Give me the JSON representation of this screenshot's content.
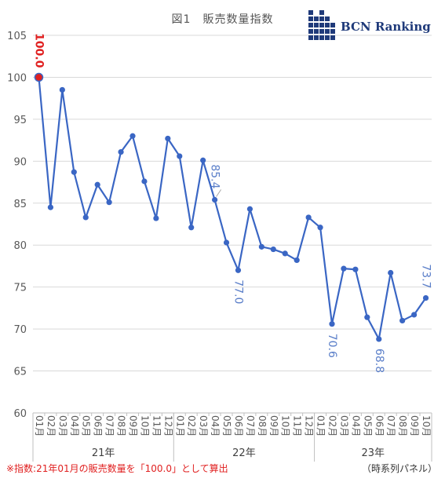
{
  "title": "図1　販売数量指数",
  "logo": {
    "text": "BCN Ranking"
  },
  "note": "※指数:21年01月の販売数量を「100.0」として算出",
  "source": "（時系列パネル）",
  "colors": {
    "line": "#3a66c4",
    "marker": "#3a66c4",
    "highlight": "#e02020",
    "label": "#5b7fc9",
    "grid": "#d9d9d9"
  },
  "chart_data": {
    "type": "line",
    "title": "図1　販売数量指数",
    "ylim": [
      60,
      105
    ],
    "yticks": [
      60,
      65,
      70,
      75,
      80,
      85,
      90,
      95,
      100,
      105
    ],
    "grid": true,
    "month_labels": [
      "01月",
      "02月",
      "03月",
      "04月",
      "05月",
      "06月",
      "07月",
      "08月",
      "09月",
      "10月",
      "11月",
      "12月",
      "01月",
      "02月",
      "03月",
      "04月",
      "05月",
      "06月",
      "07月",
      "08月",
      "09月",
      "10月",
      "11月",
      "12月",
      "01月",
      "02月",
      "03月",
      "04月",
      "05月",
      "06月",
      "07月",
      "08月",
      "09月",
      "10月"
    ],
    "year_groups": [
      {
        "label": "21年",
        "start": 0,
        "end": 11
      },
      {
        "label": "22年",
        "start": 12,
        "end": 23
      },
      {
        "label": "23年",
        "start": 24,
        "end": 33
      }
    ],
    "values": [
      100.0,
      84.5,
      98.5,
      88.7,
      83.3,
      87.2,
      85.1,
      91.1,
      93.0,
      87.6,
      83.2,
      92.7,
      90.6,
      82.1,
      90.1,
      85.4,
      80.3,
      77.0,
      84.3,
      79.8,
      79.5,
      79.0,
      78.2,
      83.3,
      82.1,
      70.6,
      77.2,
      77.1,
      71.4,
      68.8,
      76.7,
      71.0,
      71.7,
      73.7
    ],
    "data_labels": [
      {
        "index": 0,
        "text": "100.0"
      },
      {
        "index": 15,
        "text": "85.4"
      },
      {
        "index": 17,
        "text": "77.0"
      },
      {
        "index": 25,
        "text": "70.6"
      },
      {
        "index": 29,
        "text": "68.8"
      },
      {
        "index": 33,
        "text": "73.7"
      }
    ]
  }
}
